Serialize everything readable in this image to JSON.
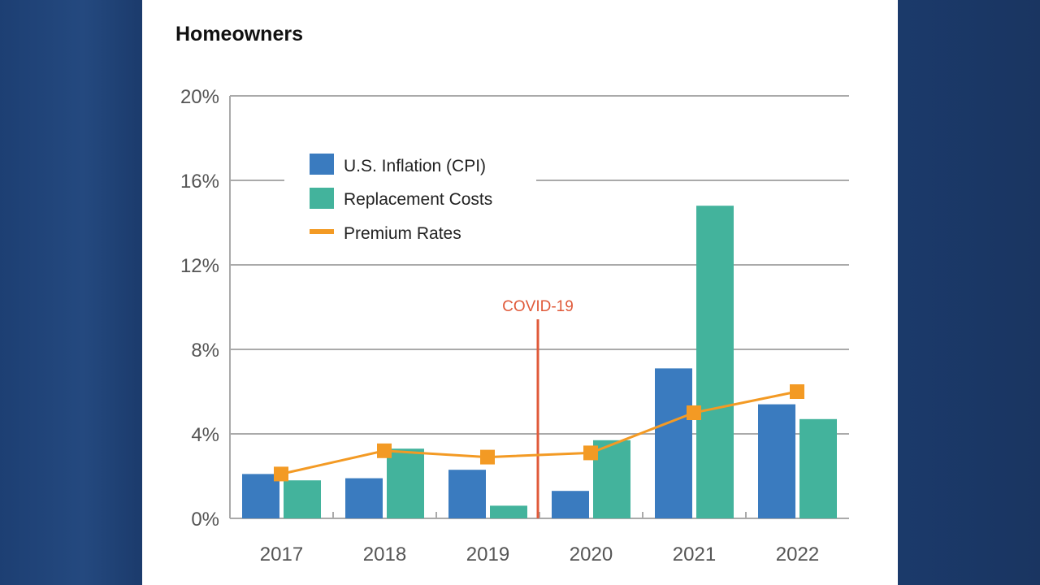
{
  "chart_data": {
    "type": "bar",
    "title": "Homeowners",
    "categories": [
      "2017",
      "2018",
      "2019",
      "2020",
      "2021",
      "2022"
    ],
    "series": [
      {
        "name": "U.S. Inflation (CPI)",
        "kind": "bar",
        "color": "#3a7bbf",
        "values": [
          2.1,
          1.9,
          2.3,
          1.3,
          7.1,
          5.4
        ]
      },
      {
        "name": "Replacement Costs",
        "kind": "bar",
        "color": "#43b39c",
        "values": [
          1.8,
          3.3,
          0.6,
          3.7,
          14.8,
          4.7
        ]
      },
      {
        "name": "Premium Rates",
        "kind": "line",
        "color": "#f39a24",
        "values": [
          2.1,
          3.2,
          2.9,
          3.1,
          5.0,
          6.0
        ]
      }
    ],
    "yticks": [
      "0%",
      "4%",
      "8%",
      "12%",
      "16%",
      "20%"
    ],
    "ytick_values": [
      0,
      4,
      8,
      12,
      16,
      20
    ],
    "ylim": [
      0,
      20
    ],
    "grid": true,
    "legend_placement": "top-left",
    "annotation": {
      "text": "COVID-19",
      "between": [
        "2019",
        "2020"
      ],
      "color": "#e05a3a"
    }
  }
}
